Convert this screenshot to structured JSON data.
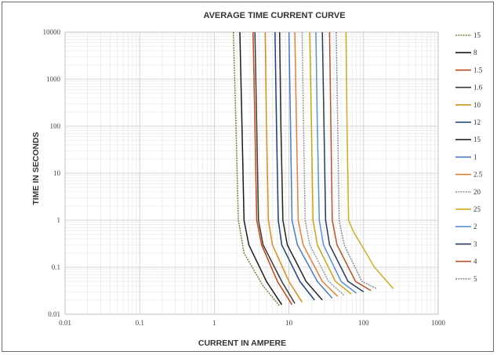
{
  "chart_data": {
    "type": "line",
    "title": "AVERAGE TIME CURRENT CURVE",
    "xlabel": "CURRENT IN AMPERE",
    "ylabel": "TIME IN SECONDS",
    "xscale": "log",
    "yscale": "log",
    "xlim": [
      0.01,
      1000
    ],
    "ylim": [
      0.01,
      10000
    ],
    "x_ticks": [
      "0.01",
      "0.1",
      "1",
      "10",
      "100",
      "1000"
    ],
    "y_ticks": [
      "0.01",
      "0.1",
      "1",
      "10",
      "100",
      "1000",
      "10000"
    ],
    "grid": true,
    "legend_position": "right",
    "series": [
      {
        "name": "15",
        "color": "#6d8a3c",
        "dashed": true,
        "x": [
          1.8,
          1.95,
          2.1,
          2.5,
          4.5,
          7.5
        ],
        "y": [
          10000,
          100,
          1,
          0.2,
          0.04,
          0.015
        ]
      },
      {
        "name": "8",
        "color": "#1a1a1a",
        "dashed": false,
        "x": [
          2.2,
          2.35,
          2.5,
          2.9,
          5,
          8
        ],
        "y": [
          10000,
          100,
          1,
          0.3,
          0.05,
          0.016
        ]
      },
      {
        "name": "1.5",
        "color": "#c0471a",
        "dashed": false,
        "x": [
          3.3,
          3.5,
          3.7,
          4.3,
          7,
          11
        ],
        "y": [
          10000,
          100,
          1,
          0.3,
          0.05,
          0.016
        ]
      },
      {
        "name": "1.6",
        "color": "#3a3a3a",
        "dashed": false,
        "x": [
          3.5,
          3.7,
          3.9,
          4.5,
          8,
          12
        ],
        "y": [
          10000,
          100,
          1,
          0.3,
          0.05,
          0.017
        ]
      },
      {
        "name": "10",
        "color": "#d4901f",
        "dashed": false,
        "x": [
          4.8,
          5.0,
          5.3,
          6,
          10,
          15
        ],
        "y": [
          10000,
          100,
          1,
          0.3,
          0.05,
          0.018
        ]
      },
      {
        "name": "12",
        "color": "#1f3f7a",
        "dashed": false,
        "x": [
          6.5,
          6.8,
          7.2,
          8,
          14,
          22
        ],
        "y": [
          10000,
          100,
          1,
          0.3,
          0.05,
          0.02
        ]
      },
      {
        "name": "15",
        "color": "#262626",
        "dashed": false,
        "x": [
          7.5,
          7.8,
          8.3,
          9.5,
          17,
          28
        ],
        "y": [
          10000,
          100,
          1,
          0.3,
          0.05,
          0.02
        ]
      },
      {
        "name": "1",
        "color": "#4a7ac4",
        "dashed": false,
        "x": [
          10,
          10.5,
          11,
          13,
          24,
          38
        ],
        "y": [
          10000,
          100,
          1,
          0.3,
          0.05,
          0.022
        ]
      },
      {
        "name": "2.5",
        "color": "#e0813a",
        "dashed": false,
        "x": [
          12,
          12.6,
          13.3,
          15.5,
          28,
          45
        ],
        "y": [
          10000,
          100,
          1,
          0.3,
          0.05,
          0.024
        ]
      },
      {
        "name": "20",
        "color": "#9a9a9a",
        "dashed": true,
        "x": [
          15,
          15.7,
          16.5,
          19,
          34,
          55
        ],
        "y": [
          10000,
          100,
          1,
          0.3,
          0.05,
          0.025
        ]
      },
      {
        "name": "25",
        "color": "#c9a314",
        "dashed": false,
        "x": [
          19,
          20,
          21,
          24,
          42,
          68
        ],
        "y": [
          10000,
          100,
          1,
          0.3,
          0.05,
          0.027
        ]
      },
      {
        "name": "2",
        "color": "#5b8fd4",
        "dashed": false,
        "x": [
          23,
          24,
          25.5,
          29,
          50,
          80
        ],
        "y": [
          10000,
          100,
          1,
          0.3,
          0.05,
          0.028
        ]
      },
      {
        "name": "3",
        "color": "#2b3b5a",
        "dashed": false,
        "x": [
          28,
          29.5,
          31,
          35,
          62,
          100
        ],
        "y": [
          10000,
          100,
          1,
          0.3,
          0.05,
          0.03
        ]
      },
      {
        "name": "4",
        "color": "#b5532a",
        "dashed": false,
        "x": [
          35,
          36.5,
          38,
          44,
          78,
          125
        ],
        "y": [
          10000,
          100,
          1,
          0.3,
          0.05,
          0.032
        ]
      },
      {
        "name": "5",
        "color": "#8c8c8c",
        "dashed": true,
        "x": [
          43,
          45,
          47,
          55,
          95,
          150
        ],
        "y": [
          10000,
          100,
          1,
          0.3,
          0.05,
          0.035
        ]
      },
      {
        "name": "",
        "color": "#d1ac22",
        "dashed": false,
        "x": [
          58,
          60,
          63,
          72,
          140,
          250
        ],
        "y": [
          10000,
          100,
          1,
          0.6,
          0.1,
          0.035
        ]
      }
    ]
  }
}
